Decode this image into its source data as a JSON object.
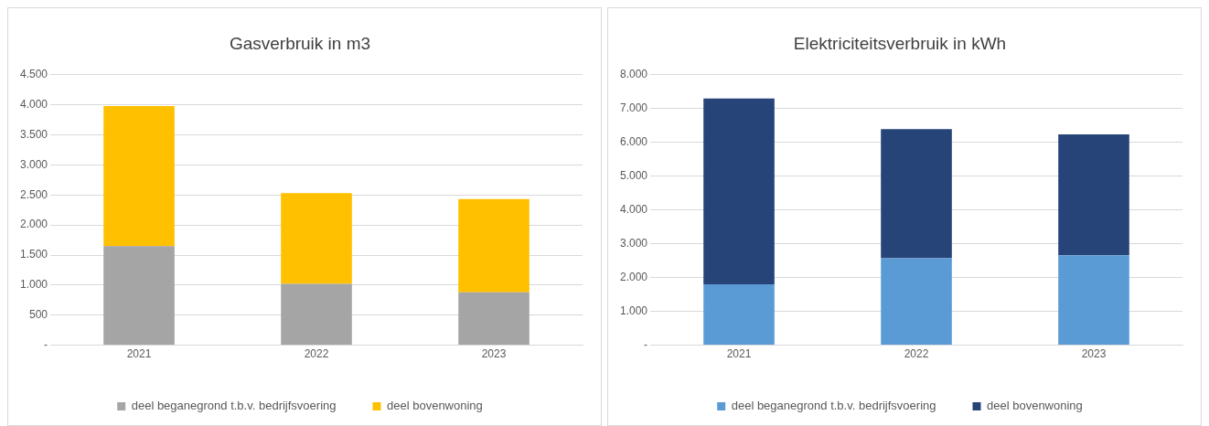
{
  "chart_data": [
    {
      "type": "bar",
      "title": "Gasverbruik in m3",
      "categories": [
        "2021",
        "2022",
        "2023"
      ],
      "stacked": true,
      "series": [
        {
          "name": "deel beganegrond t.b.v. bedrijfsvoering",
          "color": "#a5a5a5",
          "values": [
            1650,
            1020,
            880
          ]
        },
        {
          "name": "deel bovenwoning",
          "color": "#ffc000",
          "values": [
            2330,
            1510,
            1550
          ]
        }
      ],
      "ylim": [
        0,
        4500
      ],
      "yticks": [
        {
          "value": 0,
          "label": "-"
        },
        {
          "value": 500,
          "label": "500"
        },
        {
          "value": 1000,
          "label": "1.000"
        },
        {
          "value": 1500,
          "label": "1.500"
        },
        {
          "value": 2000,
          "label": "2.000"
        },
        {
          "value": 2500,
          "label": "2.500"
        },
        {
          "value": 3000,
          "label": "3.000"
        },
        {
          "value": 3500,
          "label": "3.500"
        },
        {
          "value": 4000,
          "label": "4.000"
        },
        {
          "value": 4500,
          "label": "4.500"
        }
      ],
      "grid": "y",
      "legend": "bottom"
    },
    {
      "type": "bar",
      "title": "Elektriciteitsverbruik in kWh",
      "categories": [
        "2021",
        "2022",
        "2023"
      ],
      "stacked": true,
      "series": [
        {
          "name": "deel beganegrond t.b.v. bedrijfsvoering",
          "color": "#5b9bd5",
          "values": [
            1800,
            2570,
            2660
          ]
        },
        {
          "name": "deel bovenwoning",
          "color": "#264478",
          "values": [
            5500,
            3820,
            3580
          ]
        }
      ],
      "ylim": [
        0,
        8000
      ],
      "yticks": [
        {
          "value": 0,
          "label": "-"
        },
        {
          "value": 1000,
          "label": "1.000"
        },
        {
          "value": 2000,
          "label": "2.000"
        },
        {
          "value": 3000,
          "label": "3.000"
        },
        {
          "value": 4000,
          "label": "4.000"
        },
        {
          "value": 5000,
          "label": "5.000"
        },
        {
          "value": 6000,
          "label": "6.000"
        },
        {
          "value": 7000,
          "label": "7.000"
        },
        {
          "value": 8000,
          "label": "8.000"
        }
      ],
      "grid": "y",
      "legend": "bottom"
    }
  ]
}
